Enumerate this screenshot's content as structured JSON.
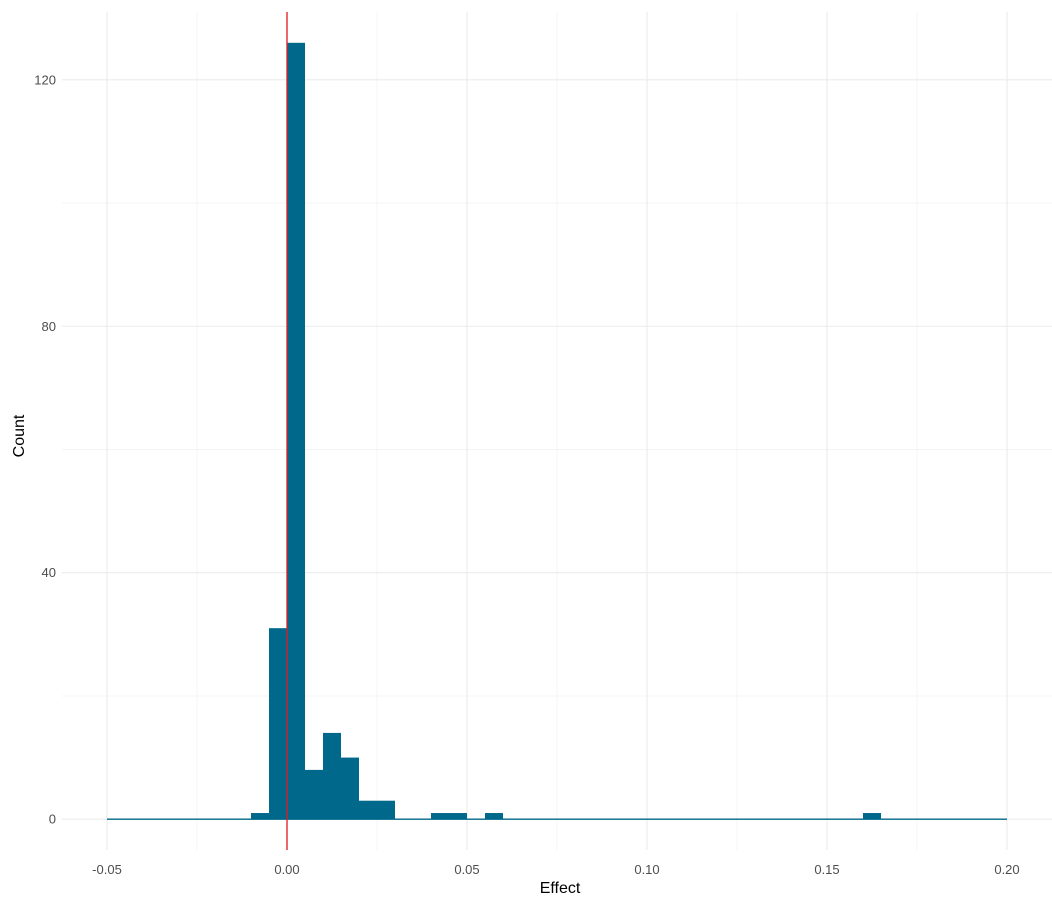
{
  "chart_data": {
    "type": "bar",
    "subtype": "histogram",
    "title": "",
    "xlabel": "Effect",
    "ylabel": "Count",
    "xlim": [
      -0.0625,
      0.2125
    ],
    "ylim": [
      -5,
      131
    ],
    "grid": true,
    "bin_width": 0.005,
    "x_ticks": [
      {
        "value": -0.05,
        "label": "-0.05"
      },
      {
        "value": 0.0,
        "label": "0.00"
      },
      {
        "value": 0.05,
        "label": "0.05"
      },
      {
        "value": 0.1,
        "label": "0.10"
      },
      {
        "value": 0.15,
        "label": "0.15"
      },
      {
        "value": 0.2,
        "label": "0.20"
      }
    ],
    "y_ticks": [
      {
        "value": 0,
        "label": "0"
      },
      {
        "value": 40,
        "label": "40"
      },
      {
        "value": 80,
        "label": "80"
      },
      {
        "value": 120,
        "label": "120"
      }
    ],
    "baseline_range": [
      -0.05,
      0.2
    ],
    "bins": [
      {
        "start": -0.01,
        "end": -0.005,
        "count": 1
      },
      {
        "start": -0.005,
        "end": 0.0,
        "count": 31
      },
      {
        "start": 0.0,
        "end": 0.005,
        "count": 126
      },
      {
        "start": 0.005,
        "end": 0.01,
        "count": 8
      },
      {
        "start": 0.01,
        "end": 0.015,
        "count": 14
      },
      {
        "start": 0.015,
        "end": 0.02,
        "count": 10
      },
      {
        "start": 0.02,
        "end": 0.025,
        "count": 3
      },
      {
        "start": 0.025,
        "end": 0.03,
        "count": 3
      },
      {
        "start": 0.04,
        "end": 0.045,
        "count": 1
      },
      {
        "start": 0.045,
        "end": 0.05,
        "count": 1
      },
      {
        "start": 0.055,
        "end": 0.06,
        "count": 1
      },
      {
        "start": 0.16,
        "end": 0.165,
        "count": 1
      }
    ],
    "reference_line": {
      "x": 0.0,
      "color": "#e41a1c"
    },
    "bar_color": "#00688b"
  }
}
